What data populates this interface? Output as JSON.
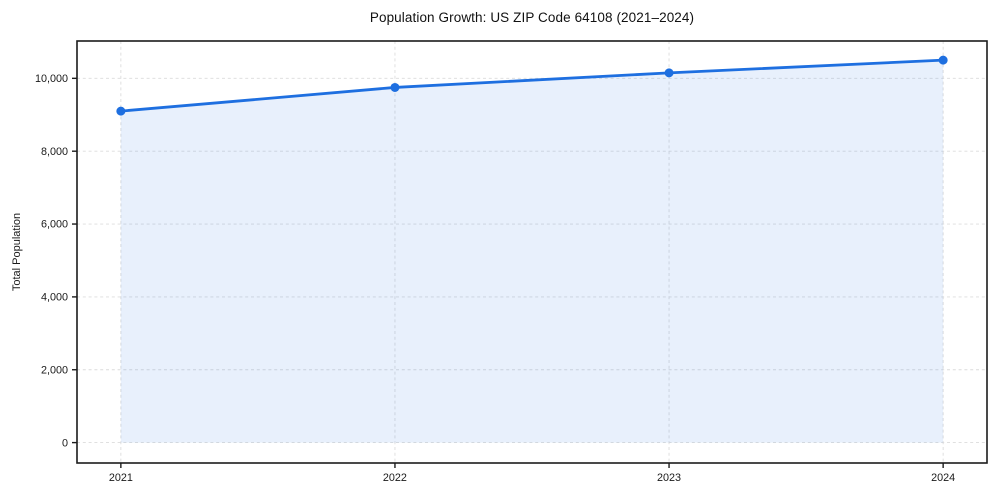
{
  "page": {
    "background": "#ffffff"
  },
  "chart_data": {
    "type": "area",
    "title": "Population Growth: US ZIP Code 64108 (2021–2024)",
    "xlabel": "",
    "ylabel": "Total Population",
    "categories": [
      "2021",
      "2022",
      "2023",
      "2024"
    ],
    "series": [
      {
        "name": "Total Population",
        "values": [
          9100,
          9750,
          10150,
          10500
        ]
      }
    ],
    "yticks": [
      0,
      2000,
      4000,
      6000,
      8000,
      10000
    ],
    "ytick_labels": [
      "0",
      "2,000",
      "4,000",
      "6,000",
      "8,000",
      "10,000"
    ],
    "ylim": [
      -560,
      11025
    ],
    "xlim": [
      -0.16,
      3.16
    ],
    "grid": true,
    "grid_style": "dashed",
    "legend": "none",
    "marker": "circle",
    "colors": {
      "line": "#1e6fe0",
      "fill": "rgba(30,111,224,0.10)",
      "grid": "#dcdcdc",
      "spine": "#1c1c1c",
      "tick_label": "#1a1a1a",
      "title": "#111111",
      "background": "#ffffff"
    }
  }
}
